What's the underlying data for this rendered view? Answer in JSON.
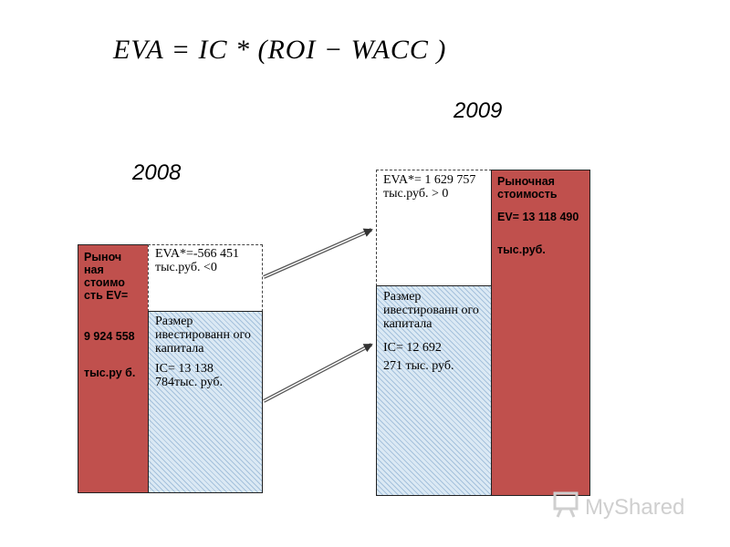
{
  "formula": "EVA = IC * (ROI − WACC )",
  "year_2008": "2008",
  "year_2009": "2009",
  "left": {
    "market_value_label": "Рыноч ная стоимо сть EV=",
    "market_value_number": "9 924 558",
    "market_value_unit": "тыс.ру б.",
    "eva_text": "EVA*=-566 451 тыс.руб. <0",
    "capital_label": "Размер ивестированн ого капитала",
    "capital_value": "IC= 13 138 784тыс. руб."
  },
  "right": {
    "eva_text": "EVA*= 1 629 757 тыс.руб. > 0",
    "capital_label": "Размер ивестированн ого капитала",
    "capital_value_1": "IC= 12 692",
    "capital_value_2": "271 тыс. руб.",
    "market_value_label": "Рыночная стоимость",
    "market_value_number": "EV= 13 118 490",
    "market_value_unit": "тыс.руб."
  },
  "watermark": {
    "text": "MyShared",
    "icon": "presentation-board-icon"
  }
}
